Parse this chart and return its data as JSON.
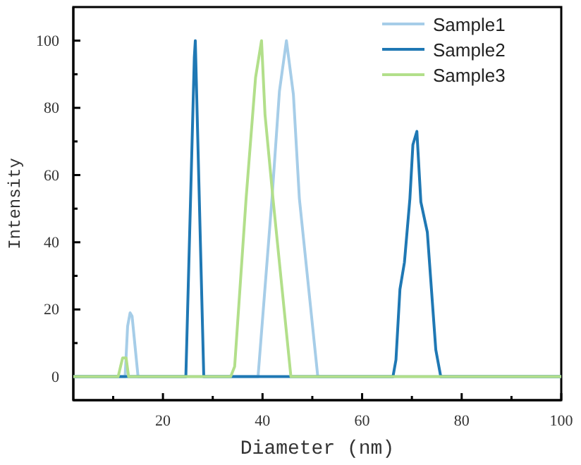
{
  "chart_data": {
    "type": "line",
    "xlabel": "Diameter (nm)",
    "ylabel": "Intensity",
    "xlim": [
      2,
      100
    ],
    "ylim": [
      -7,
      110
    ],
    "xticks": [
      {
        "value": 10,
        "label": null
      },
      20,
      {
        "value": 30,
        "label": null
      },
      40,
      {
        "value": 50,
        "label": null
      },
      60,
      {
        "value": 70,
        "label": null
      },
      80,
      {
        "value": 90,
        "label": null
      },
      100
    ],
    "yticks": [
      0,
      {
        "value": 10,
        "label": null
      },
      20,
      {
        "value": 30,
        "label": null
      },
      40,
      {
        "value": 50,
        "label": null
      },
      60,
      {
        "value": 70,
        "label": null
      },
      80,
      {
        "value": 90,
        "label": null
      },
      100
    ],
    "legend": "top right",
    "grid": false,
    "marker": "none",
    "line_style": "solid",
    "series": [
      {
        "name": "Sample1",
        "color": "#a6cde8",
        "x": [
          2,
          12.4,
          12.9,
          13.4,
          13.8,
          15,
          39.1,
          41.9,
          43.4,
          44.8,
          46.2,
          47.4,
          51.1,
          100
        ],
        "values": [
          0,
          0,
          15,
          19,
          18,
          0,
          0,
          53,
          85,
          100,
          84,
          53,
          0,
          0
        ]
      },
      {
        "name": "Sample2",
        "color": "#1f78b4",
        "x": [
          2,
          24.6,
          26.3,
          26.5,
          28.2,
          66.2,
          66.8,
          67.6,
          68.5,
          69.6,
          70.2,
          71,
          71.8,
          73.1,
          74.8,
          75.8,
          100
        ],
        "values": [
          0,
          0,
          95,
          100,
          0,
          0,
          5,
          26,
          34,
          53,
          69,
          73,
          52,
          43,
          8,
          0,
          0
        ]
      },
      {
        "name": "Sample3",
        "color": "#b2df8a",
        "x": [
          2,
          11,
          11.9,
          12.6,
          13.1,
          33.6,
          34.4,
          36.7,
          38.6,
          39.8,
          40.5,
          42.1,
          45.7,
          100
        ],
        "values": [
          0,
          0,
          5.6,
          5.6,
          0,
          0,
          3,
          53,
          89,
          100,
          78,
          53,
          0,
          0
        ]
      }
    ]
  }
}
